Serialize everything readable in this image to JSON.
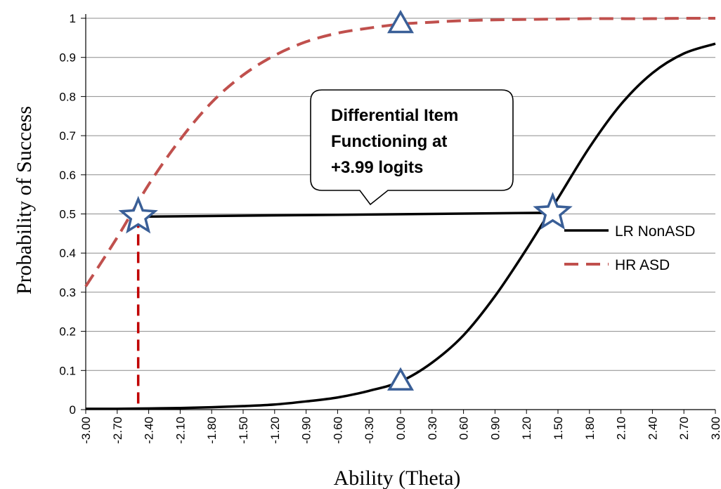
{
  "chart_data": {
    "type": "line",
    "title": "",
    "xlabel": "Ability (Theta)",
    "ylabel": "Probability of Success",
    "xlim": [
      -3.0,
      3.0
    ],
    "ylim": [
      0,
      1
    ],
    "grid": "horizontal",
    "legend": "right",
    "x_ticks": [
      "-3.00",
      "-2.70",
      "-2.40",
      "-2.10",
      "-1.80",
      "-1.50",
      "-1.20",
      "-0.90",
      "-0.60",
      "-0.30",
      "0.00",
      "0.30",
      "0.60",
      "0.90",
      "1.20",
      "1.50",
      "1.80",
      "2.10",
      "2.40",
      "2.70",
      "3.00"
    ],
    "y_ticks": [
      "0",
      "0.1",
      "0.2",
      "0.3",
      "0.4",
      "0.5",
      "0.6",
      "0.7",
      "0.8",
      "0.9",
      "1"
    ],
    "x": [
      -3.0,
      -2.7,
      -2.4,
      -2.1,
      -1.8,
      -1.5,
      -1.2,
      -0.9,
      -0.6,
      -0.3,
      0.0,
      0.3,
      0.6,
      0.9,
      1.2,
      1.5,
      1.8,
      2.1,
      2.4,
      2.7,
      3.0
    ],
    "series": [
      {
        "name": "LR NonASD",
        "color": "#000000",
        "style": "solid",
        "values": [
          0.002,
          0.002,
          0.003,
          0.004,
          0.006,
          0.009,
          0.013,
          0.021,
          0.031,
          0.048,
          0.072,
          0.12,
          0.19,
          0.29,
          0.41,
          0.54,
          0.67,
          0.78,
          0.86,
          0.91,
          0.935
        ]
      },
      {
        "name": "HR ASD",
        "color": "#c0504d",
        "style": "dashed",
        "values": [
          0.315,
          0.44,
          0.575,
          0.69,
          0.785,
          0.855,
          0.905,
          0.94,
          0.962,
          0.975,
          0.985,
          0.99,
          0.994,
          0.996,
          0.997,
          0.998,
          0.999,
          0.999,
          0.999,
          1.0,
          1.0
        ]
      }
    ],
    "annotations": {
      "callout": [
        "Differential Item",
        "Functioning at",
        "+3.99 logits"
      ],
      "dif_line": {
        "x1": -2.5,
        "x2": 1.45,
        "y1": 0.493,
        "y2": 0.503
      },
      "stars": [
        {
          "x": -2.5,
          "y": 0.493
        },
        {
          "x": 1.45,
          "y": 0.503
        }
      ],
      "triangles": [
        {
          "x": 0.0,
          "y": 0.985
        },
        {
          "x": 0.0,
          "y": 0.072
        }
      ],
      "drop_line": {
        "x": -2.5,
        "y_from": 0.493,
        "y_to": 0.0
      }
    },
    "colors": {
      "marker": "#3a5f97",
      "drop_line": "#c00000",
      "grid": "#8c8c8c"
    }
  }
}
